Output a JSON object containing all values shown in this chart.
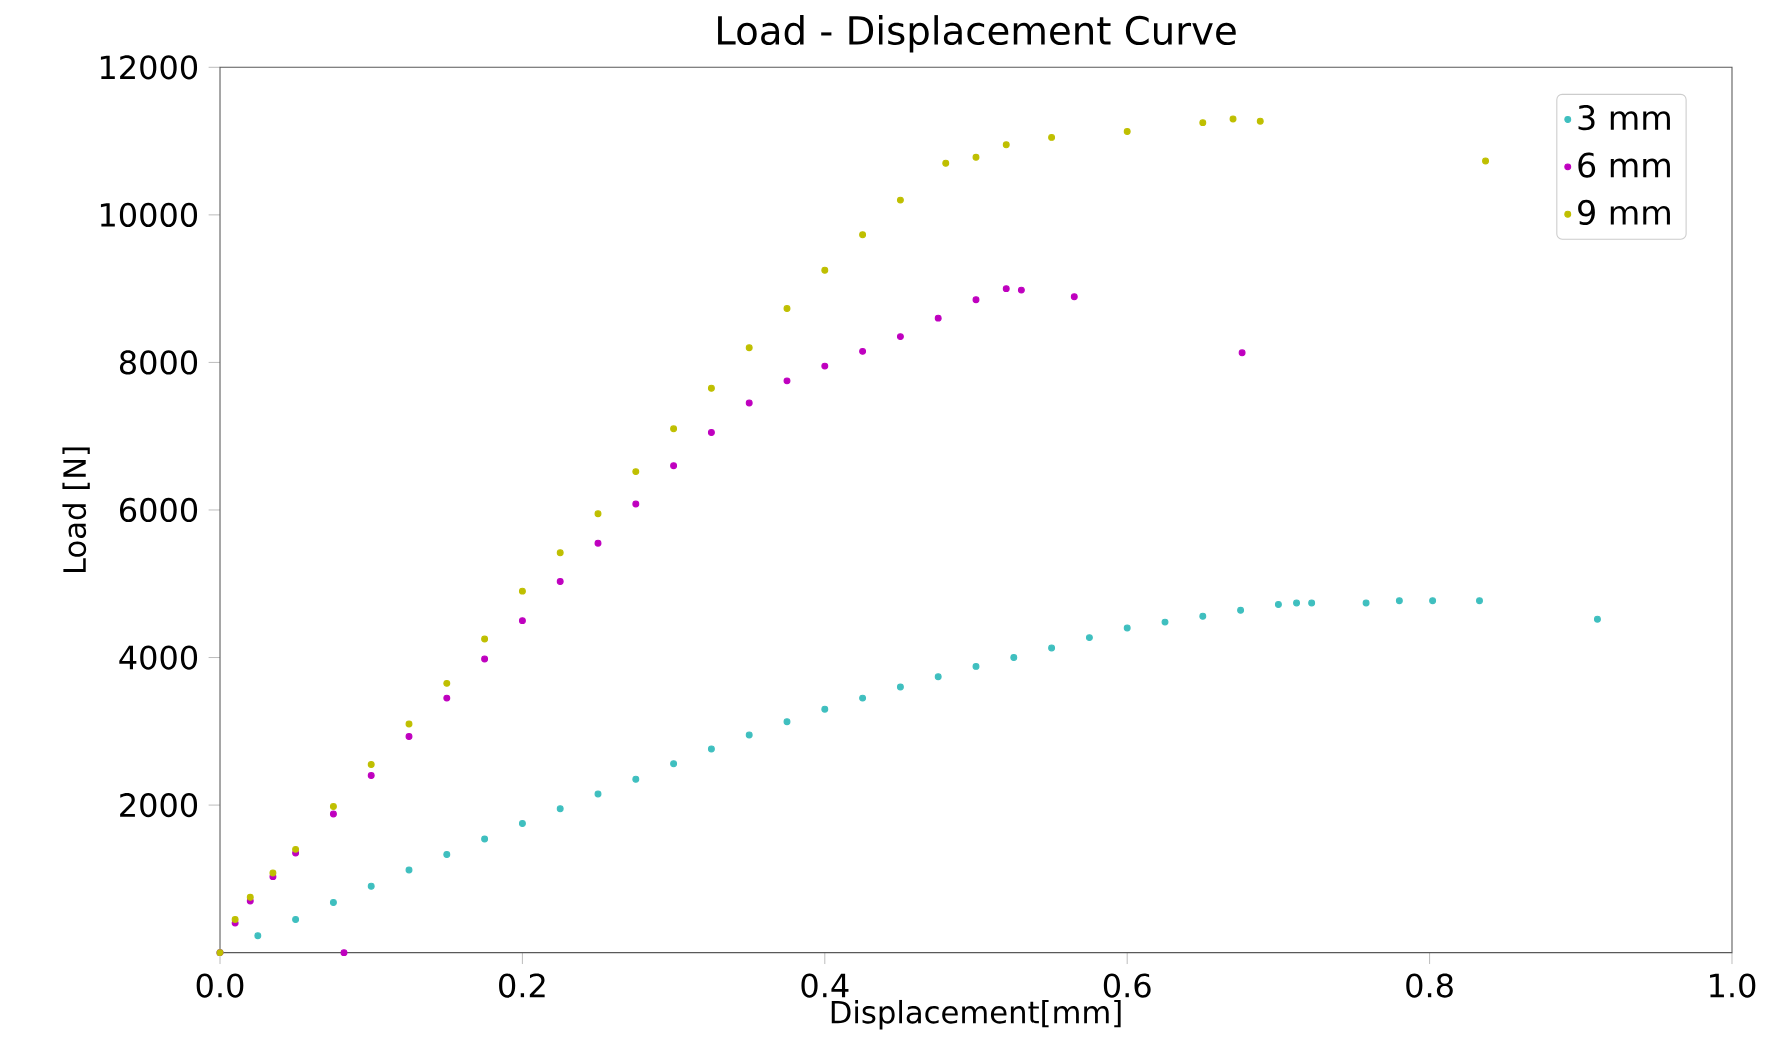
{
  "chart_data": {
    "type": "scatter",
    "title": "Load - Displacement Curve",
    "xlabel": "Displacement[mm]",
    "ylabel": "Load [N]",
    "xlim": [
      0,
      1.0
    ],
    "ylim": [
      0,
      12000
    ],
    "xticks": [
      {
        "value": 0,
        "label": "0.0"
      },
      {
        "value": 0.2,
        "label": "0.2"
      },
      {
        "value": 0.4,
        "label": "0.4"
      },
      {
        "value": 0.6,
        "label": "0.6"
      },
      {
        "value": 0.8,
        "label": "0.8"
      },
      {
        "value": 1.0,
        "label": "1.0"
      }
    ],
    "yticks": [
      2000,
      4000,
      6000,
      8000,
      10000,
      12000
    ],
    "legend": "top right",
    "series": [
      {
        "name": "3 mm",
        "color": "#3fbfbf",
        "x": [
          0,
          0.025,
          0.05,
          0.075,
          0.1,
          0.125,
          0.15,
          0.175,
          0.2,
          0.225,
          0.25,
          0.275,
          0.3,
          0.325,
          0.35,
          0.375,
          0.4,
          0.425,
          0.45,
          0.475,
          0.5,
          0.525,
          0.55,
          0.575,
          0.6,
          0.625,
          0.65,
          0.675,
          0.7,
          0.712,
          0.722,
          0.758,
          0.78,
          0.802,
          0.833,
          0.911
        ],
        "values": [
          0,
          230,
          450,
          680,
          900,
          1120,
          1330,
          1540,
          1750,
          1950,
          2150,
          2350,
          2560,
          2760,
          2950,
          3130,
          3300,
          3450,
          3600,
          3740,
          3880,
          4000,
          4130,
          4270,
          4400,
          4480,
          4560,
          4640,
          4720,
          4740,
          4740,
          4740,
          4770,
          4770,
          4770,
          4520
        ]
      },
      {
        "name": "6 mm",
        "color": "#bf00bf",
        "x": [
          0,
          0.01,
          0.02,
          0.035,
          0.05,
          0.075,
          0.1,
          0.125,
          0.15,
          0.175,
          0.2,
          0.225,
          0.25,
          0.275,
          0.3,
          0.325,
          0.35,
          0.375,
          0.4,
          0.425,
          0.45,
          0.475,
          0.5,
          0.52,
          0.53,
          0.565,
          0.676,
          0.082
        ],
        "values": [
          0,
          400,
          700,
          1030,
          1350,
          1880,
          2400,
          2930,
          3450,
          3980,
          4500,
          5030,
          5550,
          6080,
          6600,
          7050,
          7450,
          7750,
          7950,
          8150,
          8350,
          8600,
          8850,
          9000,
          8980,
          8890,
          8130,
          0
        ]
      },
      {
        "name": "9 mm",
        "color": "#bfbf00",
        "x": [
          0,
          0.01,
          0.02,
          0.035,
          0.05,
          0.075,
          0.1,
          0.125,
          0.15,
          0.175,
          0.2,
          0.225,
          0.25,
          0.275,
          0.3,
          0.325,
          0.35,
          0.375,
          0.4,
          0.425,
          0.45,
          0.48,
          0.5,
          0.52,
          0.55,
          0.6,
          0.65,
          0.67,
          0.688,
          0.837
        ],
        "values": [
          0,
          450,
          750,
          1080,
          1400,
          1980,
          2550,
          3100,
          3650,
          4250,
          4900,
          5420,
          5950,
          6520,
          7100,
          7650,
          8200,
          8730,
          9250,
          9730,
          10200,
          10700,
          10780,
          10950,
          11050,
          11130,
          11250,
          11300,
          11270,
          10730
        ]
      }
    ]
  }
}
